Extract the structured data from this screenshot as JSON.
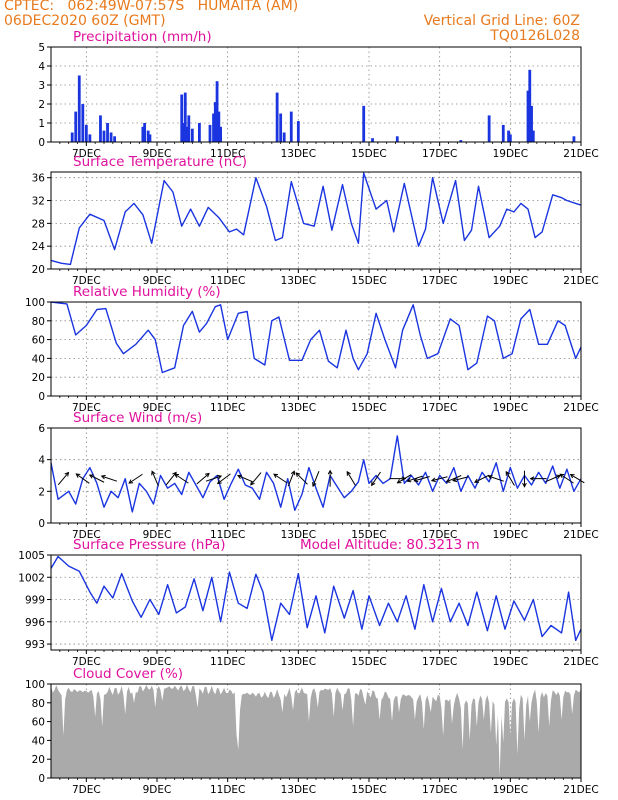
{
  "header": {
    "line1_left": "CPTEC:   062:49W-07:57S   HUMAITA (AM)",
    "line2_left": "06DEC2020 60Z (GMT)",
    "line2_right": "Vertical Grid Line: 60Z",
    "line3_right": "TQ0126L028"
  },
  "x_ticks": [
    "7DEC",
    "9DEC",
    "11DEC",
    "13DEC",
    "15DEC",
    "17DEC",
    "19DEC",
    "21DEC"
  ],
  "panels": {
    "precip": {
      "title": "Precipitation (mm/h)",
      "yticks": [
        "0",
        "1",
        "2",
        "3",
        "4",
        "5"
      ]
    },
    "temp": {
      "title": "Surface Temperature (nC)",
      "yticks": [
        "20",
        "24",
        "28",
        "32",
        "36"
      ]
    },
    "rh": {
      "title": "Relative Humidity (%)",
      "yticks": [
        "0",
        "20",
        "40",
        "60",
        "80",
        "100"
      ]
    },
    "wind": {
      "title": "Surface Wind (m/s)",
      "yticks": [
        "0",
        "2",
        "4",
        "6"
      ]
    },
    "pres": {
      "title": "Surface Pressure (hPa)",
      "model_altitude": "Model Altitude: 80.3213 m",
      "yticks": [
        "993",
        "996",
        "999",
        "1002",
        "1005"
      ]
    },
    "cloud": {
      "title": "Cloud Cover (%)",
      "yticks": [
        "0",
        "20",
        "40",
        "60",
        "80",
        "100"
      ]
    }
  },
  "colors": {
    "header": "#e87a1e",
    "title": "#e0119d",
    "line": "#1a35e0",
    "cloud": "#aaaaaa"
  },
  "chart_data": [
    {
      "type": "bar",
      "title": "Precipitation (mm/h)",
      "ylim": [
        0,
        5
      ],
      "xlim": [
        "06DEC2020 18Z",
        "21DEC2020 00Z"
      ],
      "x": [
        "6.6",
        "6.7",
        "6.8",
        "6.9",
        "7.0",
        "7.1",
        "7.4",
        "7.5",
        "7.6",
        "7.7",
        "7.8",
        "8.6",
        "8.65",
        "8.75",
        "8.8",
        "9.7",
        "9.75",
        "9.8",
        "9.85",
        "9.9",
        "10.0",
        "10.2",
        "10.5",
        "10.6",
        "10.65",
        "10.7",
        "10.75",
        "10.8",
        "12.4",
        "12.5",
        "12.6",
        "12.8",
        "13.0",
        "14.85",
        "15.1",
        "15.8",
        "17.6",
        "18.4",
        "18.8",
        "18.95",
        "19.0",
        "19.5",
        "19.55",
        "19.6",
        "19.65",
        "20.8"
      ],
      "values": [
        0.5,
        1.6,
        3.5,
        2.0,
        0.9,
        0.4,
        1.4,
        0.6,
        1.0,
        0.5,
        0.3,
        0.8,
        1.0,
        0.6,
        0.4,
        2.5,
        1.0,
        2.6,
        0.8,
        1.4,
        0.7,
        1.0,
        0.9,
        1.5,
        2.1,
        3.2,
        1.6,
        0.8,
        2.6,
        1.5,
        0.5,
        1.6,
        1.1,
        1.9,
        0.2,
        0.3,
        0.1,
        1.4,
        0.9,
        0.6,
        0.4,
        2.7,
        3.8,
        1.9,
        0.6,
        0.3
      ]
    },
    {
      "type": "line",
      "title": "Surface Temperature (nC)",
      "ylim": [
        20,
        37
      ],
      "x": [
        6.0,
        6.3,
        6.55,
        6.8,
        7.1,
        7.5,
        7.8,
        8.1,
        8.35,
        8.6,
        8.85,
        9.2,
        9.45,
        9.7,
        9.95,
        10.2,
        10.45,
        10.75,
        11.05,
        11.25,
        11.45,
        11.8,
        12.1,
        12.35,
        12.55,
        12.8,
        13.15,
        13.45,
        13.7,
        13.95,
        14.25,
        14.5,
        14.7,
        14.85,
        15.2,
        15.5,
        15.7,
        16.0,
        16.4,
        16.6,
        16.8,
        17.1,
        17.45,
        17.7,
        17.9,
        18.1,
        18.4,
        18.7,
        18.9,
        19.1,
        19.3,
        19.5,
        19.7,
        19.9,
        20.2,
        20.45,
        20.6,
        20.85,
        21.0
      ],
      "values": [
        21.5,
        21.0,
        20.8,
        27.2,
        29.6,
        28.5,
        23.4,
        30.0,
        31.5,
        29.5,
        24.5,
        35.5,
        33.5,
        27.5,
        30.5,
        27.5,
        30.8,
        29.0,
        26.5,
        27.0,
        26.0,
        36.0,
        31.0,
        25.0,
        25.5,
        35.3,
        28.0,
        27.5,
        34.5,
        26.8,
        34.8,
        28.0,
        24.5,
        36.8,
        30.5,
        32.0,
        26.5,
        35.0,
        24.0,
        27.0,
        36.0,
        28.0,
        35.5,
        25.0,
        26.8,
        34.5,
        25.5,
        27.5,
        30.5,
        30.0,
        31.5,
        30.5,
        25.5,
        26.5,
        33.0,
        32.5,
        32.0,
        31.5,
        31.2
      ]
    },
    {
      "type": "line",
      "title": "Relative Humidity (%)",
      "ylim": [
        0,
        100
      ],
      "x": [
        6.0,
        6.45,
        6.7,
        7.0,
        7.3,
        7.55,
        7.85,
        8.05,
        8.4,
        8.75,
        8.95,
        9.15,
        9.5,
        9.75,
        10.0,
        10.2,
        10.4,
        10.65,
        10.8,
        11.0,
        11.3,
        11.55,
        11.75,
        12.05,
        12.25,
        12.45,
        12.75,
        13.1,
        13.35,
        13.6,
        13.85,
        14.1,
        14.35,
        14.55,
        14.7,
        14.95,
        15.2,
        15.45,
        15.75,
        15.95,
        16.25,
        16.45,
        16.65,
        16.95,
        17.3,
        17.55,
        17.8,
        18.05,
        18.35,
        18.55,
        18.8,
        19.05,
        19.3,
        19.55,
        19.8,
        20.05,
        20.35,
        20.55,
        20.85,
        21.0
      ],
      "values": [
        100,
        98,
        65,
        75,
        92,
        93,
        56,
        45,
        55,
        70,
        60,
        25,
        30,
        75,
        90,
        68,
        77,
        95,
        97,
        60,
        88,
        90,
        40,
        33,
        80,
        84,
        38,
        38,
        60,
        70,
        37,
        30,
        70,
        40,
        28,
        45,
        88,
        60,
        30,
        70,
        97,
        65,
        40,
        45,
        82,
        75,
        28,
        35,
        85,
        80,
        40,
        45,
        82,
        92,
        55,
        55,
        80,
        75,
        40,
        52
      ]
    },
    {
      "type": "line",
      "title": "Surface Wind (m/s)",
      "ylim": [
        0,
        6
      ],
      "x": [
        6.0,
        6.2,
        6.5,
        6.7,
        6.9,
        7.1,
        7.3,
        7.5,
        7.7,
        7.9,
        8.1,
        8.3,
        8.5,
        8.7,
        8.9,
        9.1,
        9.3,
        9.5,
        9.7,
        9.9,
        10.1,
        10.3,
        10.5,
        10.7,
        10.9,
        11.1,
        11.3,
        11.5,
        11.7,
        11.9,
        12.1,
        12.3,
        12.5,
        12.7,
        12.9,
        13.1,
        13.3,
        13.5,
        13.7,
        13.9,
        14.1,
        14.3,
        14.5,
        14.7,
        14.85,
        15.0,
        15.2,
        15.4,
        15.6,
        15.8,
        16.0,
        16.2,
        16.4,
        16.6,
        16.8,
        17.0,
        17.2,
        17.4,
        17.6,
        17.8,
        18.0,
        18.2,
        18.4,
        18.6,
        18.8,
        19.0,
        19.2,
        19.4,
        19.6,
        19.8,
        20.0,
        20.2,
        20.4,
        20.6,
        20.8,
        21.0
      ],
      "values": [
        3.8,
        1.5,
        2.0,
        1.2,
        2.8,
        3.5,
        2.5,
        1.0,
        2.0,
        1.6,
        2.8,
        0.7,
        2.5,
        2.0,
        1.2,
        3.0,
        2.2,
        2.5,
        1.8,
        3.2,
        2.4,
        1.6,
        2.6,
        3.0,
        1.5,
        2.5,
        3.4,
        2.4,
        2.2,
        1.5,
        3.2,
        2.5,
        1.0,
        2.8,
        0.8,
        1.8,
        3.5,
        2.2,
        1.0,
        3.0,
        2.3,
        1.6,
        2.0,
        2.6,
        4.0,
        2.5,
        3.0,
        2.5,
        2.8,
        5.5,
        2.5,
        3.0,
        2.4,
        3.2,
        2.0,
        3.0,
        2.5,
        3.5,
        2.0,
        3.0,
        2.2,
        3.2,
        2.6,
        3.8,
        2.0,
        3.5,
        2.2,
        3.0,
        2.4,
        3.2,
        2.5,
        3.6,
        2.2,
        3.4,
        2.0,
        2.8
      ],
      "vectors": {
        "x": [
          6.35,
          6.9,
          7.3,
          7.65,
          8.4,
          8.95,
          9.4,
          9.7,
          10.3,
          10.6,
          10.9,
          11.5,
          11.8,
          12.5,
          12.8,
          13.1,
          13.5,
          13.9,
          14.5,
          15.2,
          15.8,
          16.0,
          16.3,
          16.5,
          17.0,
          17.4,
          17.6,
          18.2,
          18.6,
          19.0,
          19.4,
          19.8,
          20.2,
          20.6,
          20.9
        ],
        "u": [
          0.5,
          -0.7,
          -0.6,
          -0.6,
          -0.6,
          -0.3,
          0.4,
          -0.6,
          0.7,
          0.6,
          -0.4,
          -0.7,
          -0.5,
          -0.6,
          0.2,
          -0.4,
          -0.2,
          0.0,
          -0.3,
          -0.4,
          0.6,
          -0.5,
          -0.6,
          -0.7,
          -0.8,
          -0.7,
          -0.8,
          -0.6,
          -0.6,
          -0.3,
          0.0,
          -0.5,
          0.7,
          -0.3,
          -0.5
        ],
        "v": [
          0.6,
          0.5,
          0.3,
          0.2,
          -0.4,
          0.7,
          0.5,
          0.4,
          0.6,
          0.2,
          -0.3,
          0.3,
          -0.6,
          0.4,
          0.5,
          0.4,
          -0.5,
          0.6,
          0.5,
          -0.6,
          0.0,
          -0.3,
          -0.2,
          -0.2,
          -0.2,
          -0.3,
          -0.2,
          -0.3,
          0.2,
          0.5,
          -0.8,
          0.0,
          0.3,
          0.2,
          0.3
        ]
      }
    },
    {
      "type": "line",
      "title": "Surface Pressure (hPa)",
      "ylim": [
        992.2,
        1005
      ],
      "x": [
        6.0,
        6.2,
        6.5,
        6.8,
        7.1,
        7.3,
        7.5,
        7.75,
        8.0,
        8.3,
        8.55,
        8.8,
        9.05,
        9.3,
        9.55,
        9.8,
        10.05,
        10.3,
        10.55,
        10.8,
        11.05,
        11.3,
        11.55,
        11.8,
        12.0,
        12.25,
        12.5,
        12.75,
        13.0,
        13.25,
        13.5,
        13.75,
        14.0,
        14.3,
        14.55,
        14.8,
        15.0,
        15.3,
        15.55,
        15.8,
        16.05,
        16.3,
        16.55,
        16.8,
        17.05,
        17.3,
        17.55,
        17.8,
        18.05,
        18.35,
        18.6,
        18.85,
        19.1,
        19.4,
        19.65,
        19.9,
        20.15,
        20.45,
        20.65,
        20.85,
        21.0
      ],
      "values": [
        1003.2,
        1004.8,
        1003.5,
        1002.8,
        1000.0,
        998.5,
        1000.8,
        999.2,
        1002.5,
        998.8,
        996.6,
        999.0,
        997.0,
        1001.0,
        997.2,
        998.0,
        1001.8,
        997.5,
        1002.0,
        996.0,
        1002.7,
        998.5,
        997.8,
        1002.4,
        1000.0,
        993.5,
        998.5,
        997.0,
        1002.5,
        995.2,
        999.5,
        994.5,
        1000.8,
        996.5,
        1000.2,
        995.0,
        999.5,
        995.5,
        998.5,
        996.0,
        999.5,
        995.0,
        1001.0,
        996.0,
        1000.5,
        996.0,
        998.5,
        995.5,
        1000.0,
        994.8,
        999.5,
        995.0,
        998.8,
        996.2,
        999.0,
        994.0,
        995.5,
        994.5,
        1000.0,
        993.5,
        995.0
      ]
    },
    {
      "type": "area",
      "title": "Cloud Cover (%)",
      "ylim": [
        0,
        100
      ],
      "x_range": [
        6.0,
        21.0
      ],
      "baseline_values_by_day": {
        "6": 95,
        "7": 92,
        "8": 93,
        "9": 97,
        "10": 95,
        "11": 92,
        "12": 88,
        "13": 92,
        "14": 95,
        "15": 90,
        "16": 88,
        "17": 85,
        "18": 87,
        "19": 88,
        "20": 90,
        "21": 93
      },
      "dips": [
        {
          "x": 6.35,
          "value": 45
        },
        {
          "x": 7.25,
          "value": 65
        },
        {
          "x": 7.45,
          "value": 55
        },
        {
          "x": 8.1,
          "value": 68
        },
        {
          "x": 8.35,
          "value": 80
        },
        {
          "x": 8.95,
          "value": 75
        },
        {
          "x": 9.15,
          "value": 82
        },
        {
          "x": 10.15,
          "value": 75
        },
        {
          "x": 11.28,
          "value": 0
        },
        {
          "x": 11.35,
          "value": 72
        },
        {
          "x": 12.55,
          "value": 70
        },
        {
          "x": 12.85,
          "value": 72
        },
        {
          "x": 13.3,
          "value": 60
        },
        {
          "x": 13.55,
          "value": 75
        },
        {
          "x": 14.0,
          "value": 65
        },
        {
          "x": 14.25,
          "value": 72
        },
        {
          "x": 14.55,
          "value": 55
        },
        {
          "x": 14.9,
          "value": 78
        },
        {
          "x": 15.3,
          "value": 62
        },
        {
          "x": 15.65,
          "value": 60
        },
        {
          "x": 15.85,
          "value": 70
        },
        {
          "x": 16.3,
          "value": 62
        },
        {
          "x": 16.55,
          "value": 52
        },
        {
          "x": 16.75,
          "value": 70
        },
        {
          "x": 17.1,
          "value": 45
        },
        {
          "x": 17.35,
          "value": 58
        },
        {
          "x": 17.65,
          "value": 30
        },
        {
          "x": 17.85,
          "value": 40
        },
        {
          "x": 18.05,
          "value": 55
        },
        {
          "x": 18.25,
          "value": 62
        },
        {
          "x": 18.45,
          "value": 48
        },
        {
          "x": 18.6,
          "value": 35
        },
        {
          "x": 18.7,
          "value": 2
        },
        {
          "x": 18.8,
          "value": 38
        },
        {
          "x": 19.0,
          "value": 45
        },
        {
          "x": 19.2,
          "value": 25
        },
        {
          "x": 19.4,
          "value": 40
        },
        {
          "x": 19.55,
          "value": 60
        },
        {
          "x": 19.8,
          "value": 48
        },
        {
          "x": 20.1,
          "value": 55
        },
        {
          "x": 20.45,
          "value": 62
        },
        {
          "x": 20.75,
          "value": 68
        }
      ]
    }
  ]
}
